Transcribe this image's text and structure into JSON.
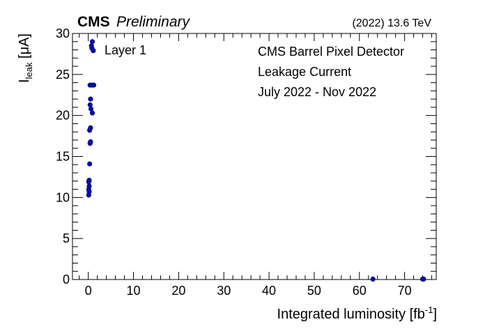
{
  "header": {
    "cms_label": "CMS",
    "status_label": "Preliminary",
    "energy_label": "(2022) 13.6 TeV"
  },
  "annotations": {
    "layer": "Layer 1",
    "line1": "CMS Barrel Pixel Detector",
    "line2": "Leakage Current",
    "line3": "July 2022 - Nov 2022"
  },
  "chart_data": {
    "type": "scatter",
    "xlabel": {
      "main": "Integrated luminosity [fb",
      "sup": "-1",
      "close": "]"
    },
    "ylabel": {
      "main": "I",
      "sub": "leak",
      "rest": " [μA]"
    },
    "xlim": [
      -3.5,
      77
    ],
    "ylim": [
      0,
      30
    ],
    "xticks": [
      0,
      10,
      20,
      30,
      40,
      50,
      60,
      70
    ],
    "yticks": [
      0,
      5,
      10,
      15,
      20,
      25,
      30
    ],
    "marker_color": "#0a0aa0",
    "series": [
      {
        "points": [
          {
            "x": 0.9,
            "y": 29.0
          },
          {
            "x": 0.7,
            "y": 28.5
          },
          {
            "x": 0.8,
            "y": 28.2
          },
          {
            "x": 1.1,
            "y": 27.9
          },
          {
            "x": 0.4,
            "y": 23.7
          },
          {
            "x": 0.9,
            "y": 23.7
          },
          {
            "x": 1.2,
            "y": 23.7
          },
          {
            "x": 0.5,
            "y": 22.0
          },
          {
            "x": 0.4,
            "y": 21.3
          },
          {
            "x": 0.6,
            "y": 20.8
          },
          {
            "x": 0.9,
            "y": 20.3
          },
          {
            "x": 0.5,
            "y": 18.5
          },
          {
            "x": 0.3,
            "y": 18.2
          },
          {
            "x": 0.5,
            "y": 16.8
          },
          {
            "x": 0.4,
            "y": 16.6
          },
          {
            "x": 0.3,
            "y": 14.1
          },
          {
            "x": 0.2,
            "y": 12.1
          },
          {
            "x": 0.1,
            "y": 11.9
          },
          {
            "x": 0.2,
            "y": 11.4
          },
          {
            "x": 0.1,
            "y": 11.0
          },
          {
            "x": 0.2,
            "y": 10.7
          },
          {
            "x": 0.1,
            "y": 10.3
          },
          {
            "x": 63.0,
            "y": 0.05
          },
          {
            "x": 74.0,
            "y": 0.05
          },
          {
            "x": 74.2,
            "y": 0.05
          }
        ]
      }
    ]
  }
}
